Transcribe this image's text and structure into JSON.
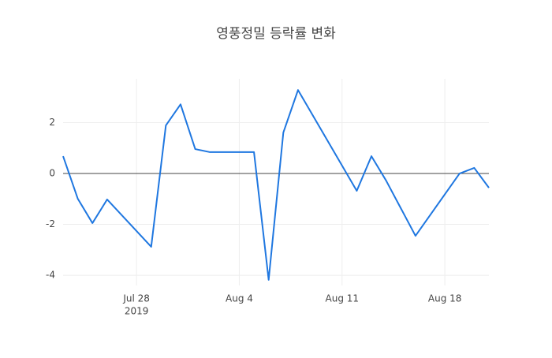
{
  "chart_data": {
    "type": "line",
    "title": "영풍정밀 등락률 변화",
    "x": [
      "2019-07-23",
      "2019-07-24",
      "2019-07-25",
      "2019-07-26",
      "2019-07-29",
      "2019-07-30",
      "2019-07-31",
      "2019-08-01",
      "2019-08-02",
      "2019-08-05",
      "2019-08-06",
      "2019-08-07",
      "2019-08-08",
      "2019-08-12",
      "2019-08-13",
      "2019-08-14",
      "2019-08-16",
      "2019-08-19",
      "2019-08-20",
      "2019-08-21"
    ],
    "series": [
      {
        "color": "#1f77e0",
        "values": [
          0.68,
          -0.99,
          -1.95,
          -1.02,
          -2.88,
          1.89,
          2.72,
          0.96,
          0.84,
          0.84,
          -4.18,
          1.61,
          3.28,
          -0.68,
          0.68,
          -0.28,
          -2.45,
          0,
          0.22,
          -0.56
        ]
      }
    ],
    "xlim": [
      "2019-07-23",
      "2019-08-21"
    ],
    "xticks": [
      {
        "value": "2019-07-28",
        "label": "Jul 28"
      },
      {
        "value": "2019-08-04",
        "label": "Aug 4"
      },
      {
        "value": "2019-08-11",
        "label": "Aug 11"
      },
      {
        "value": "2019-08-18",
        "label": "Aug 18"
      }
    ],
    "xtick_year": "2019",
    "ylim": [
      -4.4,
      3.72
    ],
    "yticks": [
      -4,
      -2,
      0,
      2
    ],
    "grid": true,
    "zeroline": true
  }
}
